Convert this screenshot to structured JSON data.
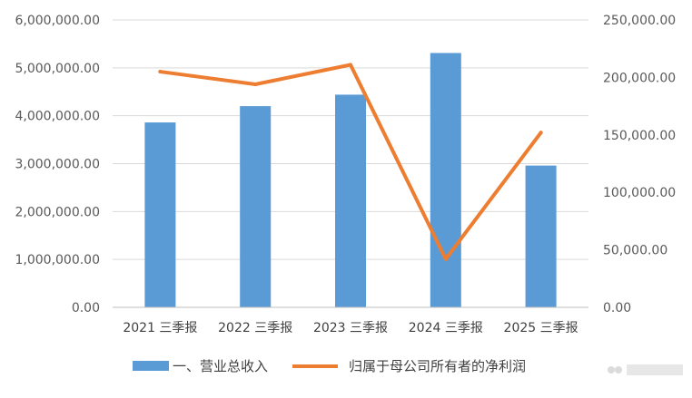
{
  "chart_data": {
    "type": "bar",
    "categories": [
      "2021 三季报",
      "2022 三季报",
      "2023 三季报",
      "2024 三季报",
      "2025 三季报"
    ],
    "series": [
      {
        "name": "一、营业总收入",
        "type": "bar",
        "axis": "left",
        "color": "#5b9bd5",
        "values": [
          3860000,
          4200000,
          4440000,
          5310000,
          2960000
        ]
      },
      {
        "name": "归属于母公司所有者的净利润",
        "type": "line",
        "axis": "right",
        "color": "#ed7d31",
        "values": [
          205000,
          194000,
          211000,
          42000,
          152000
        ]
      }
    ],
    "y_left": {
      "ylim": [
        0,
        6000000
      ],
      "ticks": [
        "0.00",
        "1,000,000.00",
        "2,000,000.00",
        "3,000,000.00",
        "4,000,000.00",
        "5,000,000.00",
        "6,000,000.00"
      ]
    },
    "y_right": {
      "ylim": [
        0,
        250000
      ],
      "ticks": [
        "0.00",
        "50,000.00",
        "100,000.00",
        "150,000.00",
        "200,000.00",
        "250,000.00"
      ]
    },
    "grid": true,
    "legend_position": "bottom"
  }
}
